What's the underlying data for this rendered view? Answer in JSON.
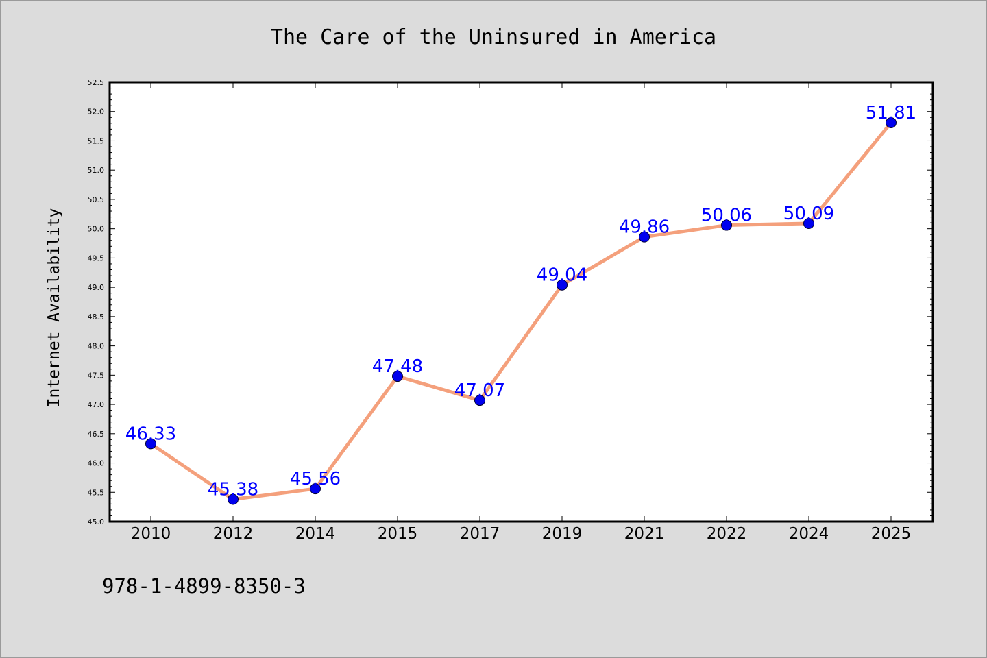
{
  "chart_data": {
    "type": "line",
    "title": "The Care of the Uninsured in America",
    "xlabel": "",
    "ylabel": "Internet Availability",
    "categories": [
      "2010",
      "2012",
      "2014",
      "2015",
      "2017",
      "2019",
      "2021",
      "2022",
      "2024",
      "2025"
    ],
    "series": [
      {
        "values": [
          46.33,
          45.38,
          45.56,
          47.48,
          47.07,
          49.04,
          49.86,
          50.06,
          50.09,
          51.81
        ],
        "labels": [
          "46.33",
          "45.38",
          "45.56",
          "47.48",
          "47.07",
          "49.04",
          "49.86",
          "50.06",
          "50.09",
          "51.81"
        ],
        "line_color": "#f4a07c",
        "marker_color": "#0000ee",
        "label_color": "#0000ff"
      }
    ],
    "ylim": [
      45.0,
      52.5
    ],
    "yticks": [
      "45.0",
      "45.5",
      "46.0",
      "46.5",
      "47.0",
      "47.5",
      "48.0",
      "48.5",
      "49.0",
      "49.5",
      "50.0",
      "50.5",
      "51.0",
      "51.5",
      "52.0",
      "52.5"
    ],
    "grid": false,
    "legend": "none"
  },
  "footer_text": "978-1-4899-8350-3"
}
